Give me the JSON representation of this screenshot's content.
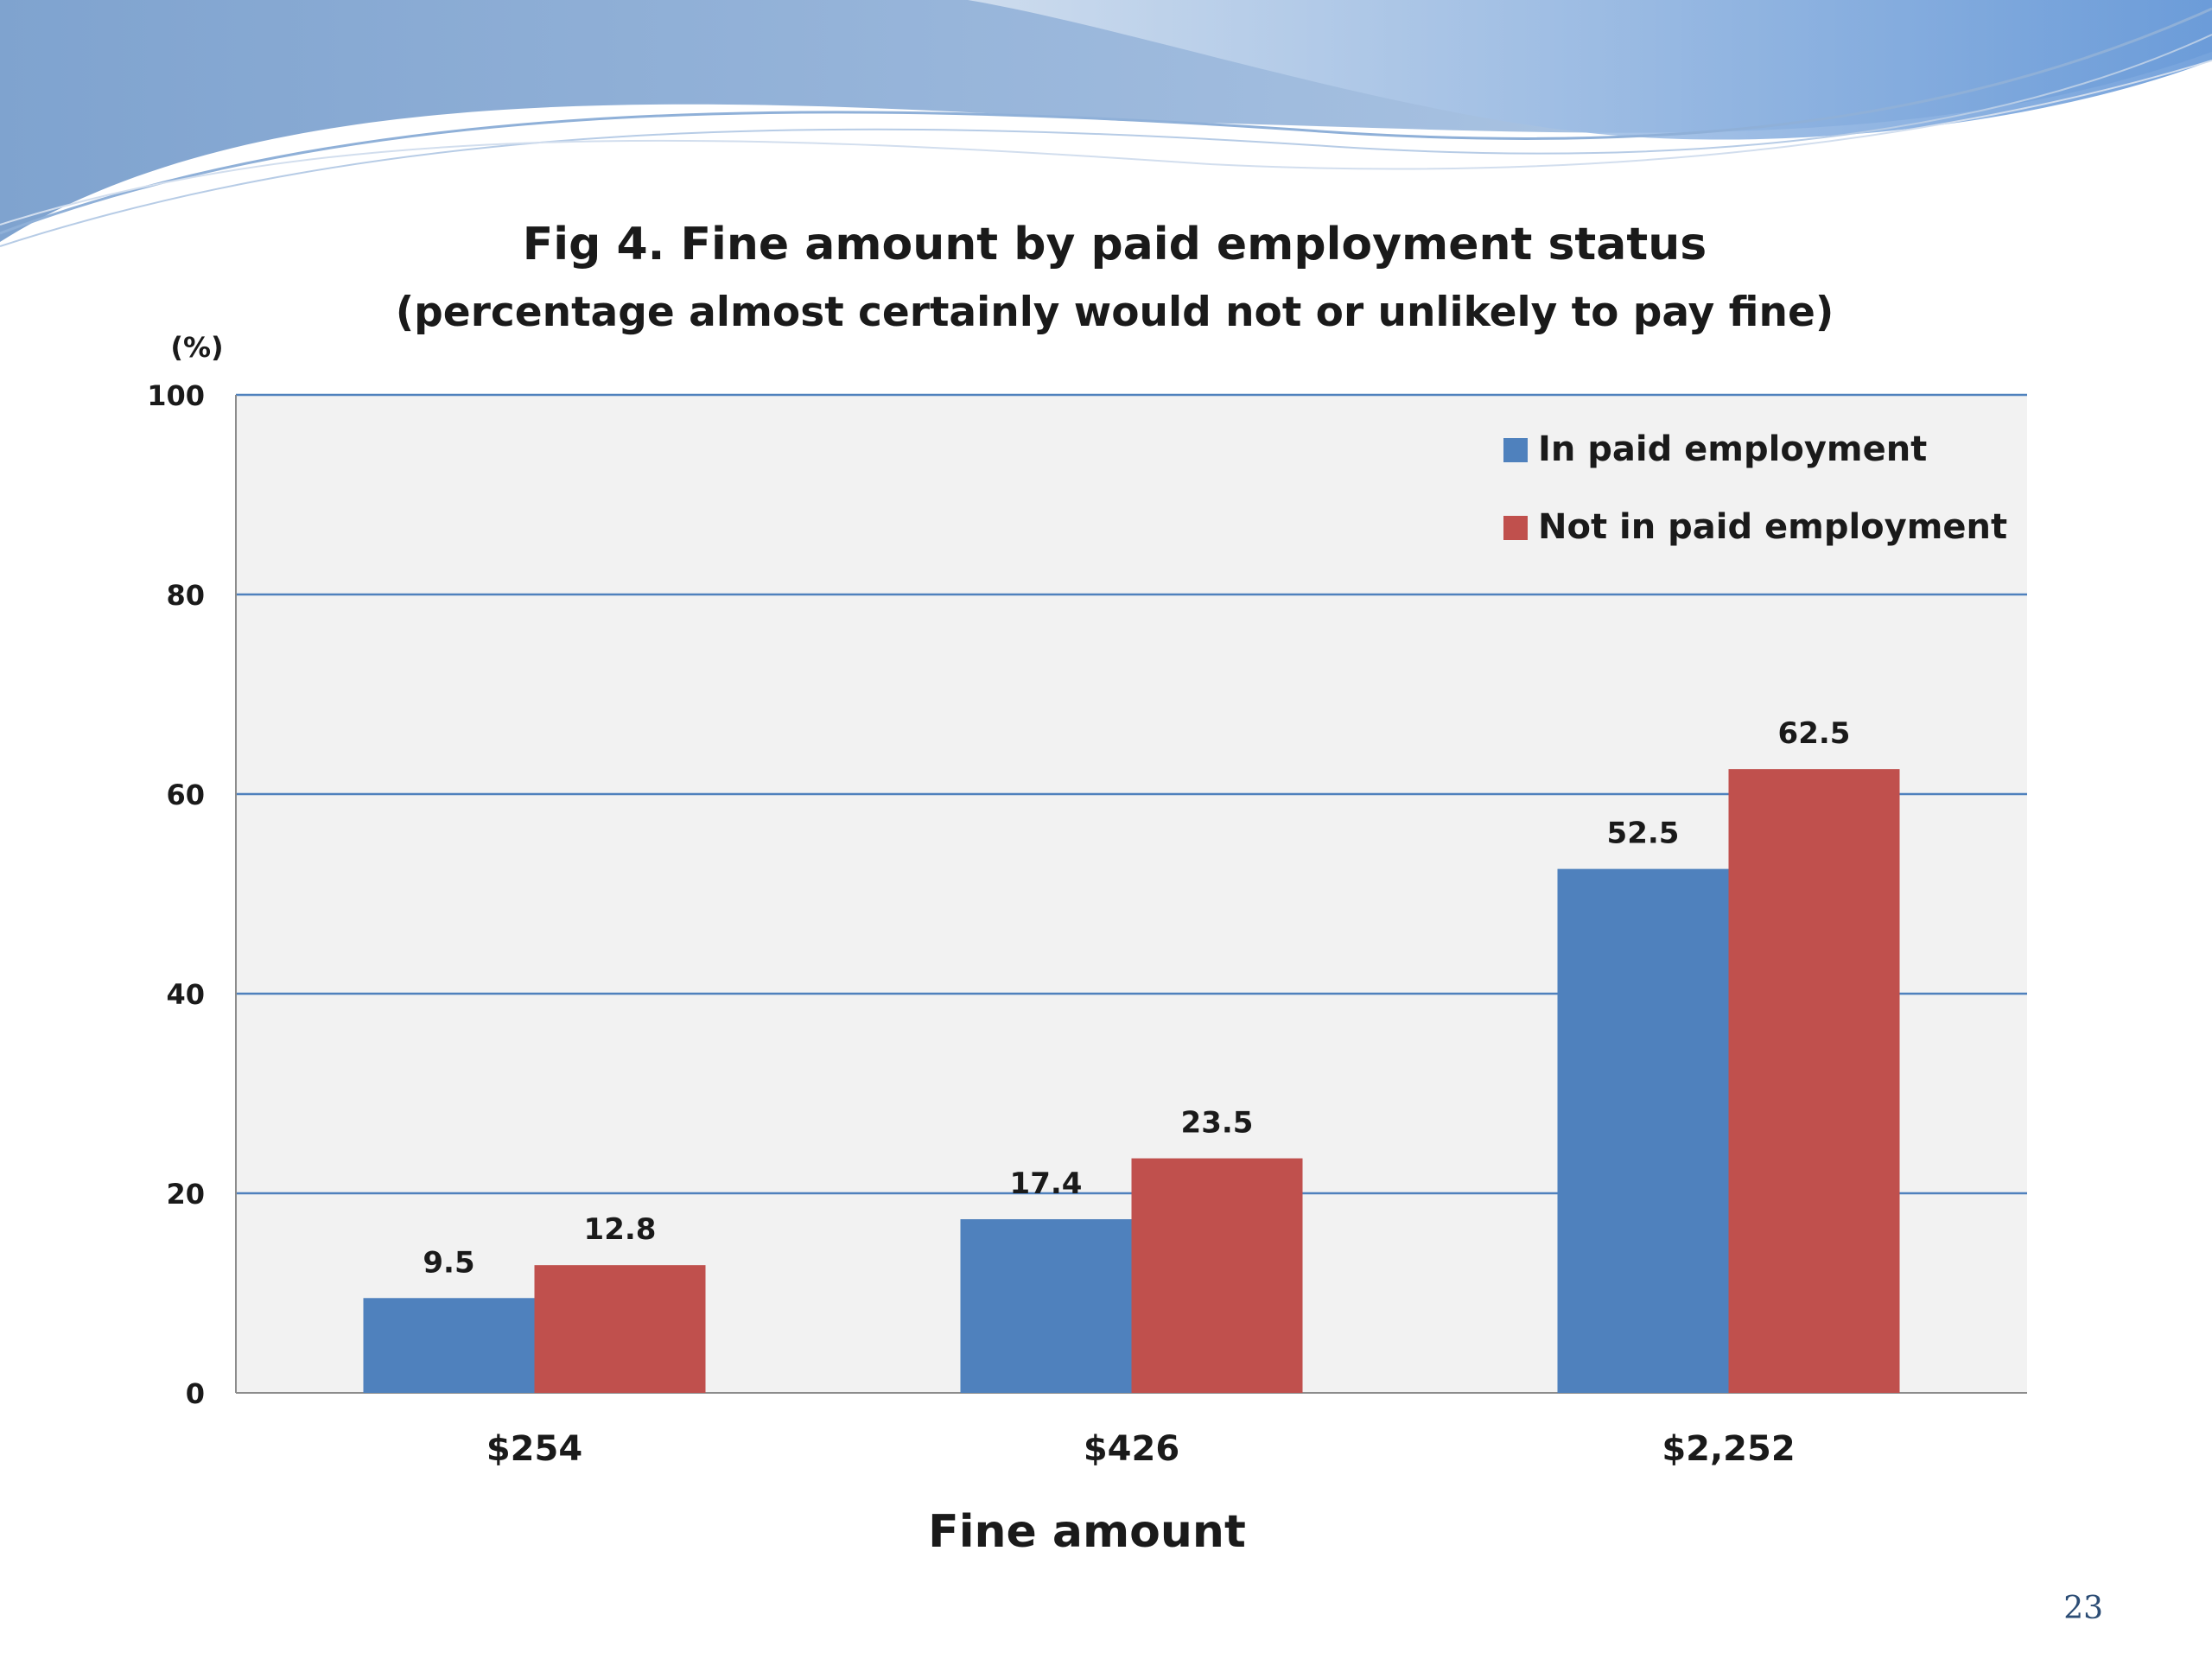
{
  "slide": {
    "page_number": "23"
  },
  "chart_data": {
    "type": "bar",
    "title": "Fig 4. Fine amount by paid employment status",
    "subtitle": "(percentage almost certainly would not or unlikely to pay fine)",
    "xlabel": "Fine amount",
    "ylabel": "(%)",
    "categories": [
      "$254",
      "$426",
      "$2,252"
    ],
    "series": [
      {
        "name": "In paid employment",
        "values": [
          9.5,
          17.4,
          52.5
        ],
        "color": "#4f81bd"
      },
      {
        "name": "Not in paid employment",
        "values": [
          12.8,
          23.5,
          62.5
        ],
        "color": "#c0504d"
      }
    ],
    "ylim": [
      0,
      100
    ],
    "yticks": [
      "0",
      "20",
      "40",
      "60",
      "80",
      "100"
    ],
    "grid": true,
    "legend_position": "top-right",
    "plot_background": "#f2f2f2",
    "gridline_color": "#4f81bd"
  }
}
